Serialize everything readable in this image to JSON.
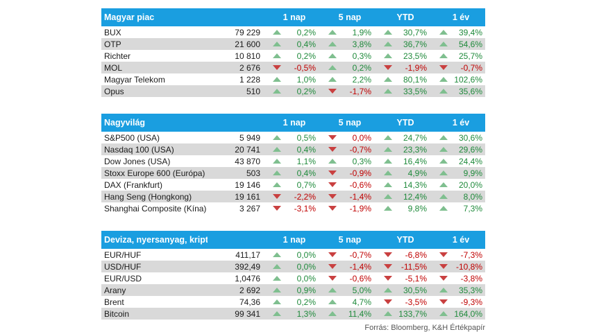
{
  "columns": [
    "1 nap",
    "5 nap",
    "YTD",
    "1 év"
  ],
  "colors": {
    "header": "#1a9ee0",
    "up": "#1f8a3b",
    "down": "#c00000",
    "alt_row": "#d9d9d9"
  },
  "sections": [
    {
      "title": "Magyar piac",
      "rows": [
        {
          "name": "BUX",
          "value": "79 229",
          "changes": [
            "0,2%",
            "1,9%",
            "30,7%",
            "39,4%"
          ],
          "dirs": [
            "up",
            "up",
            "up",
            "up"
          ]
        },
        {
          "name": "OTP",
          "value": "21 600",
          "changes": [
            "0,4%",
            "3,8%",
            "36,7%",
            "54,6%"
          ],
          "dirs": [
            "up",
            "up",
            "up",
            "up"
          ]
        },
        {
          "name": "Richter",
          "value": "10 810",
          "changes": [
            "0,2%",
            "0,3%",
            "23,5%",
            "25,7%"
          ],
          "dirs": [
            "up",
            "up",
            "up",
            "up"
          ]
        },
        {
          "name": "MOL",
          "value": "2 676",
          "changes": [
            "-0,5%",
            "0,2%",
            "-1,9%",
            "-0,7%"
          ],
          "dirs": [
            "down",
            "up",
            "down",
            "down"
          ]
        },
        {
          "name": "Magyar Telekom",
          "value": "1 228",
          "changes": [
            "1,0%",
            "2,2%",
            "80,1%",
            "102,6%"
          ],
          "dirs": [
            "up",
            "up",
            "up",
            "up"
          ]
        },
        {
          "name": "Opus",
          "value": "510",
          "changes": [
            "0,2%",
            "-1,7%",
            "33,5%",
            "35,6%"
          ],
          "dirs": [
            "up",
            "down",
            "up",
            "up"
          ]
        }
      ]
    },
    {
      "title": "Nagyvilág",
      "rows": [
        {
          "name": "S&P500 (USA)",
          "value": "5 949",
          "changes": [
            "0,5%",
            "0,0%",
            "24,7%",
            "30,6%"
          ],
          "dirs": [
            "up",
            "down",
            "up",
            "up"
          ]
        },
        {
          "name": "Nasdaq 100 (USA)",
          "value": "20 741",
          "changes": [
            "0,4%",
            "-0,7%",
            "23,3%",
            "29,6%"
          ],
          "dirs": [
            "up",
            "down",
            "up",
            "up"
          ]
        },
        {
          "name": "Dow Jones (USA)",
          "value": "43 870",
          "changes": [
            "1,1%",
            "0,3%",
            "16,4%",
            "24,4%"
          ],
          "dirs": [
            "up",
            "up",
            "up",
            "up"
          ]
        },
        {
          "name": "Stoxx Europe 600 (Európa)",
          "value": "503",
          "changes": [
            "0,4%",
            "-0,9%",
            "4,9%",
            "9,9%"
          ],
          "dirs": [
            "up",
            "down",
            "up",
            "up"
          ]
        },
        {
          "name": "DAX (Frankfurt)",
          "value": "19 146",
          "changes": [
            "0,7%",
            "-0,6%",
            "14,3%",
            "20,0%"
          ],
          "dirs": [
            "up",
            "down",
            "up",
            "up"
          ]
        },
        {
          "name": "Hang Seng (Hongkong)",
          "value": "19 161",
          "changes": [
            "-2,2%",
            "-1,4%",
            "12,4%",
            "8,0%"
          ],
          "dirs": [
            "down",
            "down",
            "up",
            "up"
          ]
        },
        {
          "name": "Shanghai Composite (Kína)",
          "value": "3 267",
          "changes": [
            "-3,1%",
            "-1,9%",
            "9,8%",
            "7,3%"
          ],
          "dirs": [
            "down",
            "down",
            "up",
            "up"
          ]
        }
      ]
    },
    {
      "title": "Deviza, nyersanyag, kripto",
      "rows": [
        {
          "name": "EUR/HUF",
          "value": "411,17",
          "changes": [
            "0,0%",
            "-0,7%",
            "-6,8%",
            "-7,3%"
          ],
          "dirs": [
            "up",
            "down",
            "down",
            "down"
          ]
        },
        {
          "name": "USD/HUF",
          "value": "392,49",
          "changes": [
            "0,0%",
            "-1,4%",
            "-11,5%",
            "-10,8%"
          ],
          "dirs": [
            "up",
            "down",
            "down",
            "down"
          ]
        },
        {
          "name": "EUR/USD",
          "value": "1,0476",
          "changes": [
            "0,0%",
            "-0,6%",
            "-5,1%",
            "-3,8%"
          ],
          "dirs": [
            "up",
            "down",
            "down",
            "down"
          ]
        },
        {
          "name": "Arany",
          "value": "2 692",
          "changes": [
            "0,9%",
            "5,0%",
            "30,5%",
            "35,3%"
          ],
          "dirs": [
            "up",
            "up",
            "up",
            "up"
          ]
        },
        {
          "name": "Brent",
          "value": "74,36",
          "changes": [
            "0,2%",
            "4,7%",
            "-3,5%",
            "-9,3%"
          ],
          "dirs": [
            "up",
            "up",
            "down",
            "down"
          ]
        },
        {
          "name": "Bitcoin",
          "value": "99 341",
          "changes": [
            "1,3%",
            "11,4%",
            "133,7%",
            "164,0%"
          ],
          "dirs": [
            "up",
            "up",
            "up",
            "up"
          ]
        }
      ]
    }
  ],
  "source": "Forrás: Bloomberg, K&H Értékpapír"
}
